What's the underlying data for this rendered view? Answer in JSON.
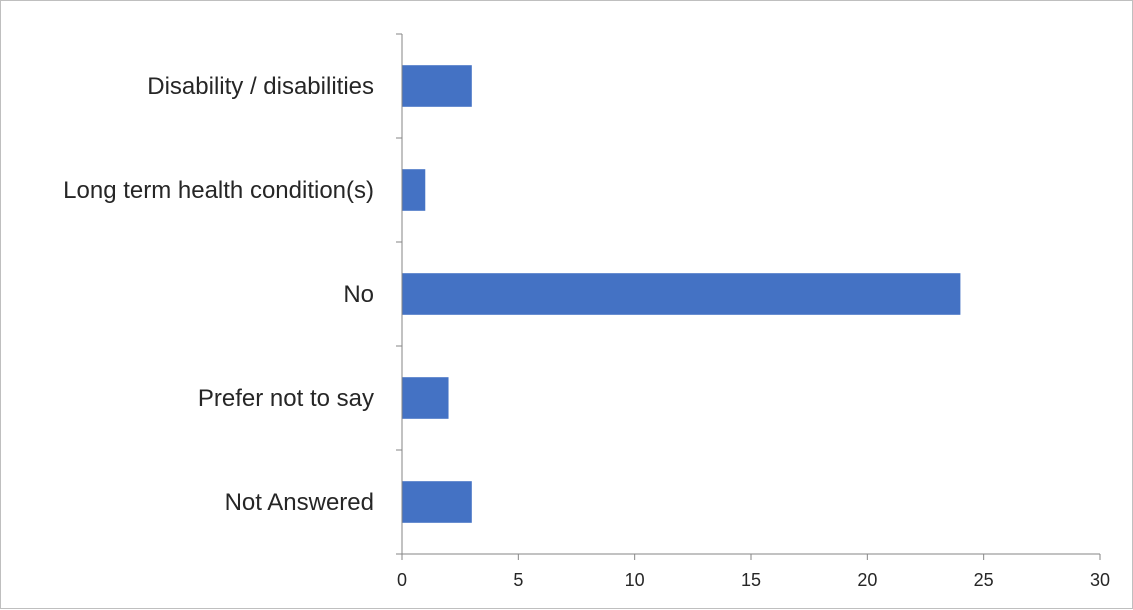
{
  "chart_data": {
    "type": "bar",
    "orientation": "horizontal",
    "title": "",
    "xlabel": "",
    "ylabel": "",
    "categories": [
      "Disability / disabilities",
      "Long term health condition(s)",
      "No",
      "Prefer not to say",
      "Not Answered"
    ],
    "values": [
      3,
      1,
      24,
      2,
      3
    ],
    "xlim": [
      0,
      30
    ],
    "x_ticks": [
      0,
      5,
      10,
      15,
      20,
      25,
      30
    ],
    "x_tick_labels": [
      "0",
      "5",
      "10",
      "15",
      "20",
      "25",
      "30"
    ],
    "grid": false,
    "legend": "none",
    "bar_color": "#4472C4",
    "axis_color": "#868686",
    "text_color": "#262626"
  }
}
